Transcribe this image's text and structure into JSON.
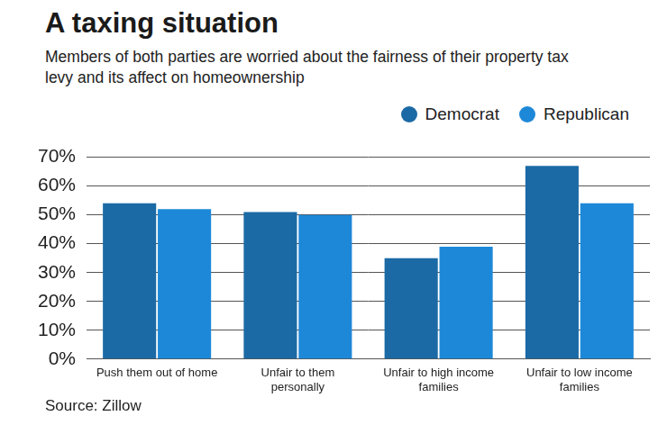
{
  "chart_data": {
    "type": "bar",
    "title": "A taxing situation",
    "subtitle": "Members of both parties are worried about the fairness of their property tax levy and its affect on homeownership",
    "source": "Source: Zillow",
    "categories": [
      "Push them out of home",
      "Unfair to them personally",
      "Unfair to high income families",
      "Unfair to low income families"
    ],
    "series": [
      {
        "name": "Democrat",
        "color": "#1b6aa5",
        "values": [
          54,
          51,
          35,
          67
        ]
      },
      {
        "name": "Republican",
        "color": "#1d88d8",
        "values": [
          52,
          50,
          39,
          54
        ]
      }
    ],
    "ylim": [
      0,
      70
    ],
    "yticks": [
      {
        "value": 0,
        "label": "0%"
      },
      {
        "value": 10,
        "label": "10%"
      },
      {
        "value": 20,
        "label": "20%"
      },
      {
        "value": 30,
        "label": "30%"
      },
      {
        "value": 40,
        "label": "40%"
      },
      {
        "value": 50,
        "label": "50%"
      },
      {
        "value": 60,
        "label": "60%"
      },
      {
        "value": 70,
        "label": "70%"
      }
    ],
    "grid": true,
    "legend": "top-right"
  }
}
